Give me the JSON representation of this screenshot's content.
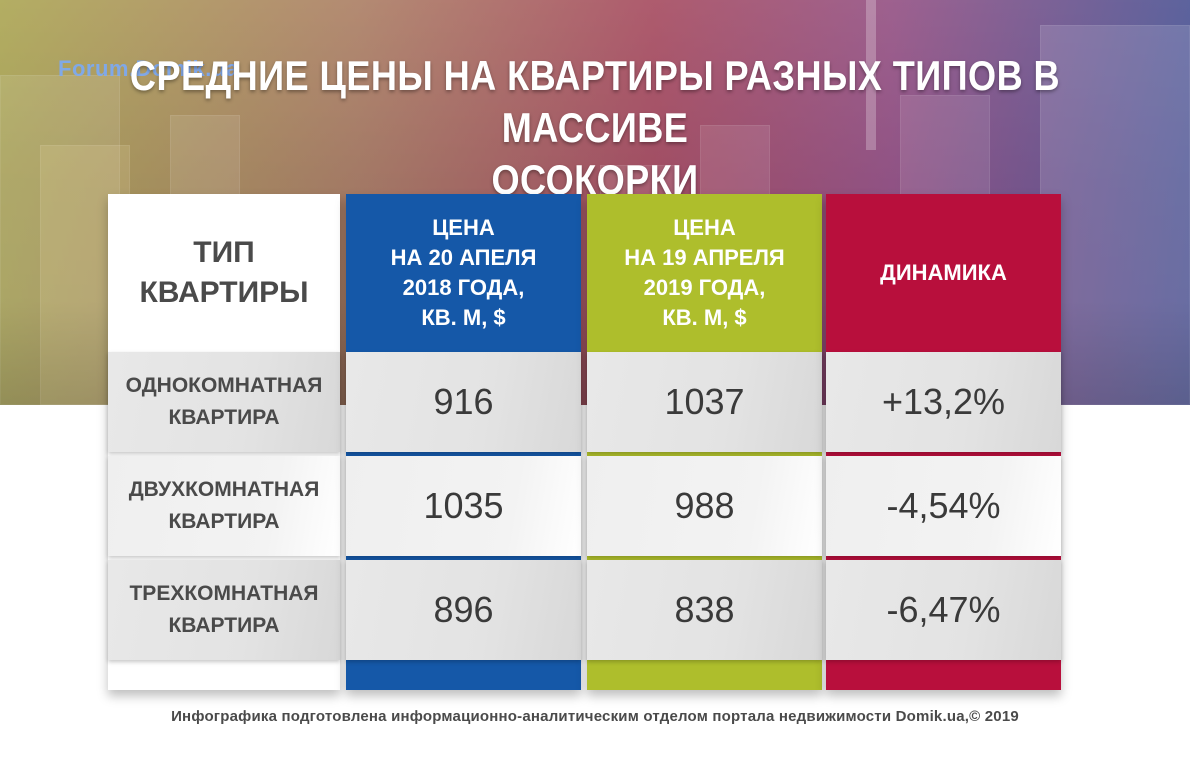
{
  "watermark": "Forum.Domik.ua",
  "title": "СРЕДНИЕ ЦЕНЫ НА КВАРТИРЫ РАЗНЫХ ТИПОВ В МАССИВЕ\nОСОКОРКИ",
  "table": {
    "headers": {
      "type": "ТИП\nКВАРТИРЫ",
      "price_2018": "ЦЕНА\nНА 20 АПЕЛЯ\n2018 ГОДА,\nКВ. М, $",
      "price_2019": "ЦЕНА\nНА 19 АПРЕЛЯ\n2019 ГОДА,\nКВ. М, $",
      "dynamics": "ДИНАМИКА"
    },
    "rows": [
      {
        "type": "ОДНОКОМНАТНАЯ\nКВАРТИРА",
        "price_2018": "916",
        "price_2019": "1037",
        "dynamics": "+13,2%"
      },
      {
        "type": "ДВУХКОМНАТНАЯ\nКВАРТИРА",
        "price_2018": "1035",
        "price_2019": "988",
        "dynamics": "-4,54%"
      },
      {
        "type": "ТРЕХКОМНАТНАЯ\nКВАРТИРА",
        "price_2018": "896",
        "price_2019": "838",
        "dynamics": "-6,47%"
      }
    ]
  },
  "colors": {
    "col_2018": "#1558a8",
    "col_2019": "#aebe2c",
    "col_dynamics": "#b80f3c"
  },
  "footer": "Инфографика подготовлена информационно-аналитическим отделом портала недвижимости Domik.ua,© 2019"
}
